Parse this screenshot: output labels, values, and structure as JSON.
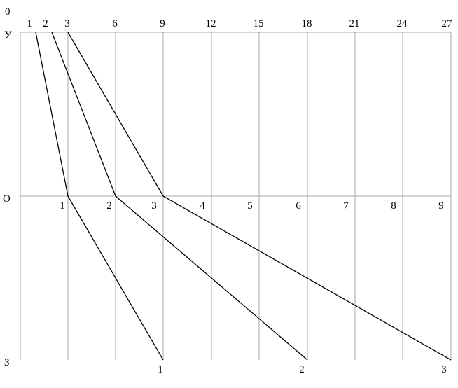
{
  "diagram": {
    "corner_label": "0",
    "row_labels": {
      "top": "У",
      "middle": "О",
      "bottom": "З"
    },
    "top_ticks": [
      "1",
      "2",
      "3",
      "6",
      "9",
      "12",
      "15",
      "18",
      "21",
      "24",
      "27"
    ],
    "middle_ticks": [
      "1",
      "2",
      "3",
      "4",
      "5",
      "6",
      "7",
      "8",
      "9"
    ],
    "bottom_ticks": [
      "1",
      "2",
      "3"
    ],
    "paths": [
      {
        "name": "path-1",
        "top": "1",
        "middle": "1",
        "bottom": "1"
      },
      {
        "name": "path-2",
        "top": "2",
        "middle": "2",
        "bottom": "2"
      },
      {
        "name": "path-3",
        "top": "3",
        "middle": "3",
        "bottom": "3"
      }
    ],
    "colors": {
      "grid": "#a8a8a8",
      "line": "#000000",
      "text": "#000000"
    }
  }
}
